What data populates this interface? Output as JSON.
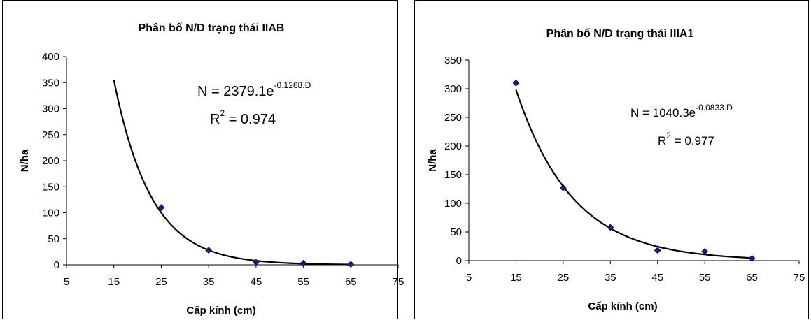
{
  "chart_data": [
    {
      "type": "scatter",
      "title": "Phân bố N/D trạng thái IIAB",
      "xlabel": "Cấp kính (cm)",
      "ylabel": "N/ha",
      "xlim": [
        5,
        75
      ],
      "ylim": [
        0,
        400
      ],
      "xticks": [
        "5",
        "15",
        "25",
        "35",
        "45",
        "55",
        "65",
        "75"
      ],
      "yticks": [
        "0",
        "50",
        "100",
        "150",
        "200",
        "250",
        "300",
        "350",
        "400"
      ],
      "points": {
        "x": [
          25,
          35,
          45,
          55,
          65
        ],
        "y": [
          110,
          28,
          5,
          3,
          1
        ]
      },
      "trendline": {
        "a": 2379.1,
        "b": -0.1268,
        "x_range": [
          15,
          65
        ]
      },
      "equation": {
        "prefix": "N = 2379.1e",
        "exponent": "-0.1268.D"
      },
      "r2": {
        "prefix": "R",
        "sup": "2",
        "value": " = 0.974"
      },
      "marker_color": "#1f1f7a",
      "line_color": "#000000"
    },
    {
      "type": "scatter",
      "title": "Phân bố N/D trạng thái IIIA1",
      "xlabel": "Cấp kính (cm)",
      "ylabel": "N/ha",
      "xlim": [
        5,
        75
      ],
      "ylim": [
        0,
        350
      ],
      "xticks": [
        "5",
        "15",
        "25",
        "35",
        "45",
        "55",
        "65",
        "75"
      ],
      "yticks": [
        "0",
        "50",
        "100",
        "150",
        "200",
        "250",
        "300",
        "350"
      ],
      "points": {
        "x": [
          15,
          25,
          35,
          45,
          55,
          65
        ],
        "y": [
          310,
          127,
          58,
          18,
          16,
          4
        ]
      },
      "trendline": {
        "a": 1040.3,
        "b": -0.0833,
        "x_range": [
          15,
          65
        ]
      },
      "equation": {
        "prefix": "N = 1040.3e",
        "exponent": "-0.0833.D"
      },
      "r2": {
        "prefix": "R",
        "sup": "2",
        "value": " = 0.977"
      },
      "marker_color": "#1f1f7a",
      "line_color": "#000000"
    }
  ]
}
